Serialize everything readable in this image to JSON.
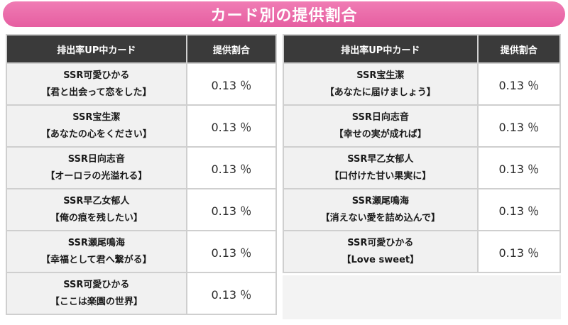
{
  "banner": {
    "title": "カード別の提供割合"
  },
  "tables": {
    "left": {
      "headers": {
        "card": "排出率UP中カード",
        "rate": "提供割合"
      },
      "rows": [
        {
          "name": "SSR可愛ひかる",
          "title": "【君と出会って恋をした】",
          "rate": "0.13 ％"
        },
        {
          "name": "SSR宝生潔",
          "title": "【あなたの心をください】",
          "rate": "0.13 ％"
        },
        {
          "name": "SSR日向志音",
          "title": "【オーロラの光溢れる】",
          "rate": "0.13 ％"
        },
        {
          "name": "SSR早乙女郁人",
          "title": "【俺の痕を残したい】",
          "rate": "0.13 ％"
        },
        {
          "name": "SSR瀬尾鳴海",
          "title": "【幸福として君へ繋がる】",
          "rate": "0.13 ％"
        },
        {
          "name": "SSR可愛ひかる",
          "title": "【ここは楽園の世界】",
          "rate": "0.13 ％"
        }
      ]
    },
    "right": {
      "headers": {
        "card": "排出率UP中カード",
        "rate": "提供割合"
      },
      "rows": [
        {
          "name": "SSR宝生潔",
          "title": "【あなたに届けましょう】",
          "rate": "0.13 ％"
        },
        {
          "name": "SSR日向志音",
          "title": "【幸せの実が成れば】",
          "rate": "0.13 ％"
        },
        {
          "name": "SSR早乙女郁人",
          "title": "【口付けた甘い果実に】",
          "rate": "0.13 ％"
        },
        {
          "name": "SSR瀬尾鳴海",
          "title": "【消えない愛を詰め込んで】",
          "rate": "0.13 ％"
        },
        {
          "name": "SSR可愛ひかる",
          "title": "【Love sweet】",
          "rate": "0.13 ％"
        }
      ]
    }
  }
}
